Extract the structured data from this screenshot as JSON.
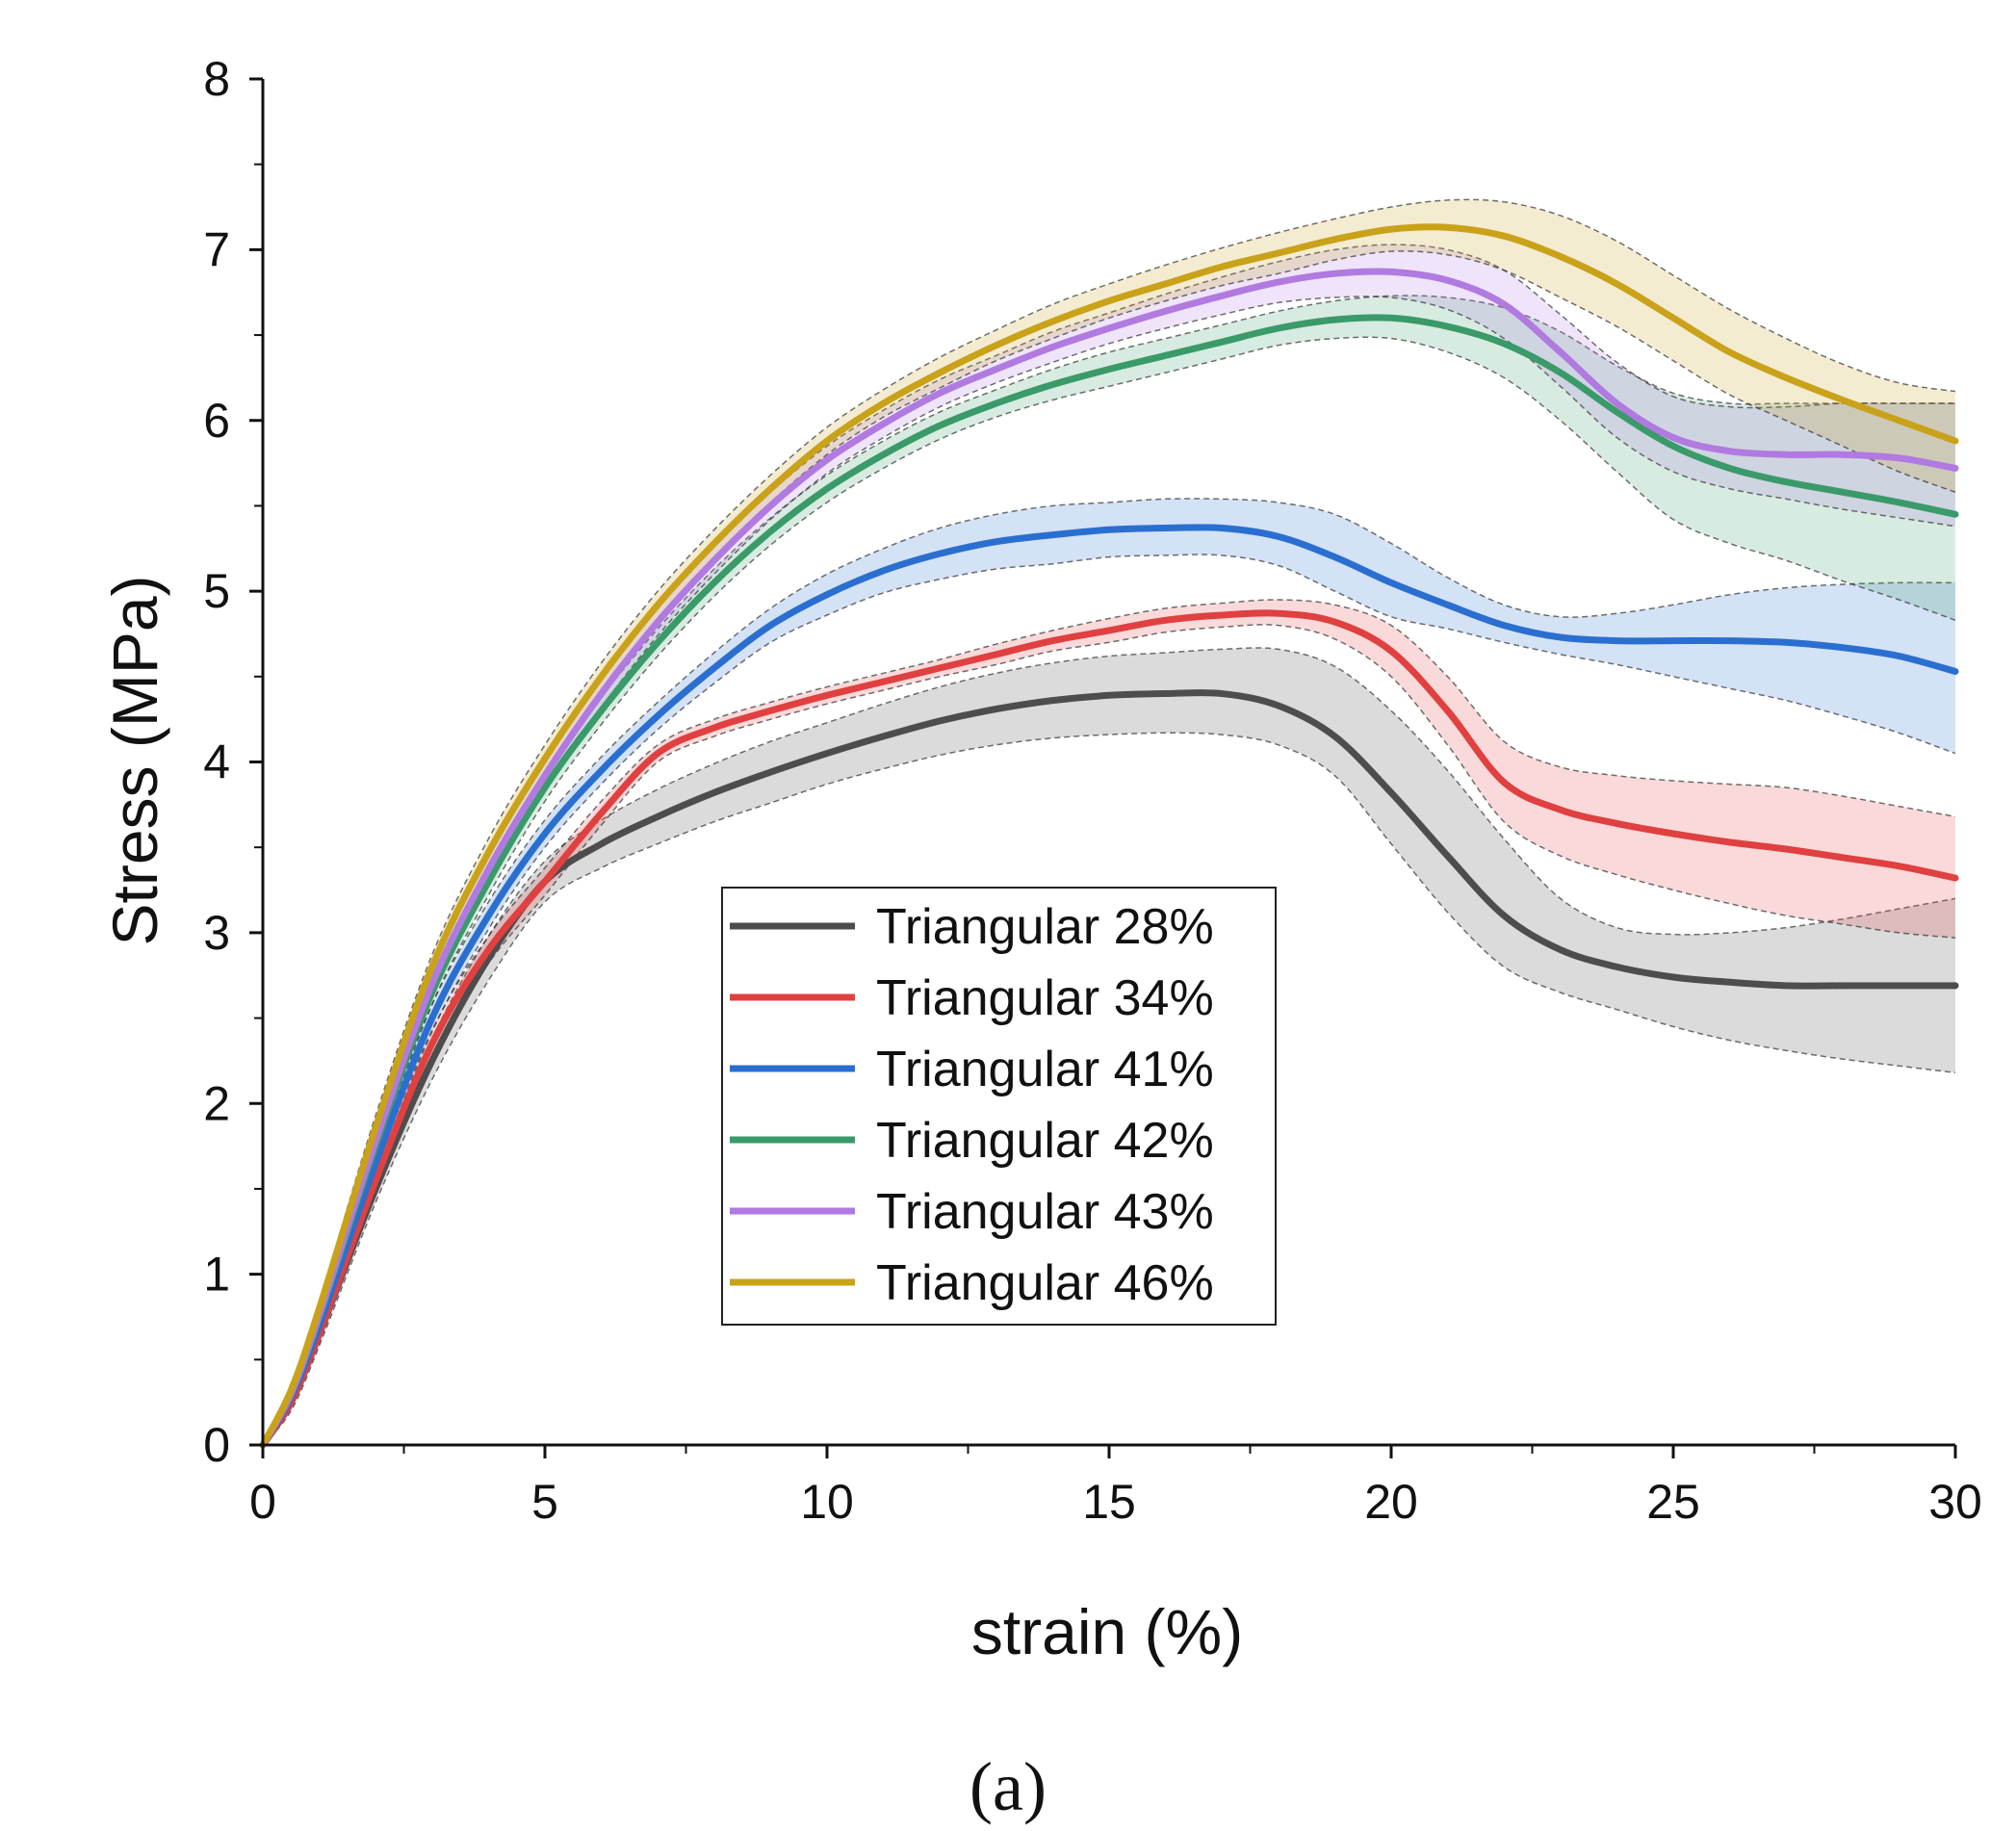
{
  "panel_label": "(a)",
  "chart_data": {
    "type": "line",
    "title": "",
    "xlabel": "strain (%)",
    "ylabel": "Stress (MPa)",
    "xlim": [
      0,
      30
    ],
    "ylim": [
      0,
      8
    ],
    "xticks": [
      0,
      5,
      10,
      15,
      20,
      25,
      30
    ],
    "yticks": [
      0,
      1,
      2,
      3,
      4,
      5,
      6,
      7,
      8
    ],
    "grid": false,
    "legend_position": "center",
    "x": [
      0,
      0.5,
      1,
      2,
      3,
      4,
      5,
      6,
      7,
      8,
      9,
      10,
      11,
      12,
      13,
      14,
      15,
      16,
      17,
      18,
      19,
      20,
      21,
      22,
      23,
      24,
      25,
      26,
      27,
      28,
      29,
      30
    ],
    "series": [
      {
        "name": "Triangular 28%",
        "color": "#4d4d4d",
        "values": [
          0,
          0.25,
          0.65,
          1.5,
          2.25,
          2.85,
          3.3,
          3.52,
          3.68,
          3.82,
          3.94,
          4.05,
          4.15,
          4.24,
          4.31,
          4.36,
          4.39,
          4.4,
          4.4,
          4.33,
          4.15,
          3.82,
          3.45,
          3.1,
          2.9,
          2.8,
          2.74,
          2.71,
          2.69,
          2.69,
          2.69,
          2.69
        ],
        "upper": [
          0,
          0.3,
          0.72,
          1.6,
          2.38,
          2.98,
          3.42,
          3.66,
          3.84,
          3.99,
          4.12,
          4.23,
          4.34,
          4.44,
          4.52,
          4.58,
          4.62,
          4.64,
          4.66,
          4.66,
          4.56,
          4.3,
          3.95,
          3.55,
          3.2,
          3.03,
          2.99,
          3.0,
          3.03,
          3.08,
          3.14,
          3.2
        ],
        "lower": [
          0,
          0.2,
          0.58,
          1.42,
          2.14,
          2.72,
          3.18,
          3.38,
          3.52,
          3.65,
          3.76,
          3.87,
          3.96,
          4.04,
          4.1,
          4.14,
          4.16,
          4.17,
          4.16,
          4.1,
          3.92,
          3.52,
          3.12,
          2.8,
          2.65,
          2.55,
          2.45,
          2.37,
          2.31,
          2.26,
          2.22,
          2.18
        ]
      },
      {
        "name": "Triangular 34%",
        "color": "#e04040",
        "values": [
          0,
          0.25,
          0.65,
          1.55,
          2.35,
          2.9,
          3.3,
          3.7,
          4.05,
          4.2,
          4.3,
          4.39,
          4.47,
          4.55,
          4.63,
          4.71,
          4.77,
          4.83,
          4.86,
          4.87,
          4.82,
          4.65,
          4.3,
          3.88,
          3.72,
          3.64,
          3.58,
          3.53,
          3.49,
          3.44,
          3.39,
          3.32
        ],
        "upper": [
          0,
          0.28,
          0.7,
          1.62,
          2.43,
          2.98,
          3.38,
          3.77,
          4.1,
          4.25,
          4.35,
          4.44,
          4.52,
          4.6,
          4.69,
          4.77,
          4.84,
          4.9,
          4.93,
          4.95,
          4.92,
          4.8,
          4.5,
          4.12,
          3.97,
          3.92,
          3.89,
          3.87,
          3.85,
          3.8,
          3.74,
          3.68
        ],
        "lower": [
          0,
          0.22,
          0.6,
          1.48,
          2.27,
          2.82,
          3.22,
          3.63,
          4.0,
          4.15,
          4.25,
          4.34,
          4.42,
          4.5,
          4.57,
          4.65,
          4.7,
          4.76,
          4.79,
          4.8,
          4.72,
          4.5,
          4.1,
          3.65,
          3.45,
          3.34,
          3.25,
          3.17,
          3.1,
          3.05,
          3.0,
          2.97
        ]
      },
      {
        "name": "Triangular 41%",
        "color": "#2a6fd0",
        "values": [
          0,
          0.28,
          0.7,
          1.65,
          2.5,
          3.1,
          3.58,
          3.95,
          4.27,
          4.55,
          4.8,
          4.98,
          5.12,
          5.22,
          5.29,
          5.33,
          5.36,
          5.37,
          5.37,
          5.32,
          5.2,
          5.05,
          4.92,
          4.8,
          4.73,
          4.71,
          4.71,
          4.71,
          4.7,
          4.67,
          4.62,
          4.53
        ],
        "upper": [
          0,
          0.31,
          0.74,
          1.72,
          2.58,
          3.18,
          3.66,
          4.03,
          4.35,
          4.64,
          4.9,
          5.1,
          5.25,
          5.37,
          5.45,
          5.5,
          5.52,
          5.54,
          5.54,
          5.52,
          5.45,
          5.28,
          5.08,
          4.92,
          4.85,
          4.87,
          4.92,
          4.98,
          5.02,
          5.04,
          5.05,
          5.05
        ],
        "lower": [
          0,
          0.25,
          0.66,
          1.58,
          2.42,
          3.02,
          3.5,
          3.87,
          4.19,
          4.46,
          4.7,
          4.86,
          4.99,
          5.07,
          5.13,
          5.16,
          5.2,
          5.21,
          5.21,
          5.15,
          5.0,
          4.85,
          4.78,
          4.7,
          4.63,
          4.57,
          4.5,
          4.43,
          4.36,
          4.27,
          4.17,
          4.05
        ]
      },
      {
        "name": "Triangular 42%",
        "color": "#3a9a6a",
        "values": [
          0,
          0.3,
          0.75,
          1.75,
          2.65,
          3.3,
          3.85,
          4.3,
          4.7,
          5.05,
          5.35,
          5.6,
          5.8,
          5.97,
          6.1,
          6.21,
          6.3,
          6.38,
          6.46,
          6.54,
          6.59,
          6.6,
          6.55,
          6.45,
          6.28,
          6.05,
          5.85,
          5.72,
          5.64,
          5.58,
          5.52,
          5.45
        ],
        "upper": [
          0,
          0.33,
          0.79,
          1.82,
          2.72,
          3.38,
          3.93,
          4.38,
          4.78,
          5.13,
          5.43,
          5.68,
          5.88,
          6.05,
          6.18,
          6.3,
          6.4,
          6.48,
          6.56,
          6.64,
          6.7,
          6.73,
          6.72,
          6.66,
          6.52,
          6.32,
          6.16,
          6.1,
          6.1,
          6.1,
          6.1,
          6.1
        ],
        "lower": [
          0,
          0.27,
          0.71,
          1.68,
          2.58,
          3.22,
          3.77,
          4.22,
          4.62,
          4.97,
          5.27,
          5.52,
          5.72,
          5.89,
          6.02,
          6.12,
          6.2,
          6.28,
          6.36,
          6.44,
          6.48,
          6.48,
          6.4,
          6.25,
          6.0,
          5.7,
          5.42,
          5.28,
          5.18,
          5.06,
          4.95,
          4.83
        ]
      },
      {
        "name": "Triangular 43%",
        "color": "#b07ae0",
        "values": [
          0,
          0.3,
          0.76,
          1.78,
          2.7,
          3.37,
          3.92,
          4.4,
          4.82,
          5.18,
          5.5,
          5.77,
          5.98,
          6.16,
          6.3,
          6.43,
          6.54,
          6.64,
          6.73,
          6.81,
          6.86,
          6.87,
          6.82,
          6.68,
          6.4,
          6.1,
          5.9,
          5.82,
          5.8,
          5.8,
          5.78,
          5.72
        ],
        "upper": [
          0,
          0.33,
          0.8,
          1.85,
          2.77,
          3.45,
          4.0,
          4.48,
          4.9,
          5.26,
          5.58,
          5.85,
          6.06,
          6.24,
          6.38,
          6.52,
          6.63,
          6.74,
          6.84,
          6.93,
          7.0,
          7.03,
          7.0,
          6.88,
          6.62,
          6.34,
          6.14,
          6.08,
          6.08,
          6.1,
          6.1,
          6.1
        ],
        "lower": [
          0,
          0.27,
          0.72,
          1.71,
          2.63,
          3.29,
          3.84,
          4.32,
          4.74,
          5.1,
          5.42,
          5.69,
          5.9,
          6.08,
          6.22,
          6.34,
          6.45,
          6.54,
          6.62,
          6.69,
          6.72,
          6.72,
          6.65,
          6.48,
          6.2,
          5.9,
          5.7,
          5.6,
          5.54,
          5.48,
          5.43,
          5.38
        ]
      },
      {
        "name": "Triangular 46%",
        "color": "#c9a21a",
        "values": [
          0,
          0.32,
          0.8,
          1.86,
          2.8,
          3.47,
          4.02,
          4.5,
          4.92,
          5.28,
          5.6,
          5.88,
          6.1,
          6.28,
          6.44,
          6.58,
          6.7,
          6.8,
          6.9,
          6.98,
          7.06,
          7.12,
          7.13,
          7.08,
          6.96,
          6.8,
          6.6,
          6.4,
          6.25,
          6.12,
          6.0,
          5.88
        ],
        "upper": [
          0,
          0.35,
          0.84,
          1.93,
          2.87,
          3.55,
          4.1,
          4.58,
          5.0,
          5.36,
          5.68,
          5.96,
          6.18,
          6.37,
          6.53,
          6.68,
          6.8,
          6.91,
          7.01,
          7.1,
          7.18,
          7.25,
          7.29,
          7.28,
          7.2,
          7.05,
          6.85,
          6.65,
          6.48,
          6.33,
          6.22,
          6.17
        ],
        "lower": [
          0,
          0.29,
          0.76,
          1.79,
          2.73,
          3.39,
          3.94,
          4.42,
          4.84,
          5.2,
          5.52,
          5.8,
          6.02,
          6.19,
          6.35,
          6.48,
          6.6,
          6.7,
          6.79,
          6.86,
          6.94,
          6.99,
          6.97,
          6.88,
          6.72,
          6.55,
          6.35,
          6.15,
          6.0,
          5.85,
          5.7,
          5.58
        ]
      }
    ]
  }
}
